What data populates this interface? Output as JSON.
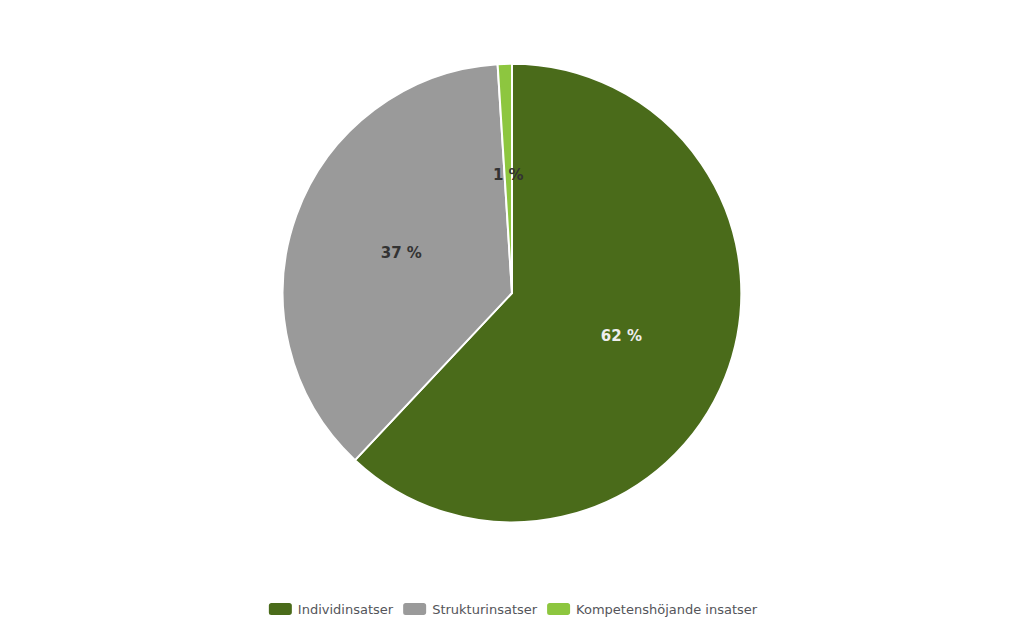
{
  "chart_data": {
    "type": "pie",
    "categories": [
      "Individinsatser",
      "Strukturinsatser",
      "Kompetenshöjande insatser"
    ],
    "values": [
      62,
      37,
      1
    ],
    "value_labels": [
      "62 %",
      "37 %",
      "1 %"
    ],
    "colors": [
      "#4a6b1a",
      "#9a9a9a",
      "#8dc63f"
    ],
    "data_labels": true,
    "legend": "bottom"
  }
}
